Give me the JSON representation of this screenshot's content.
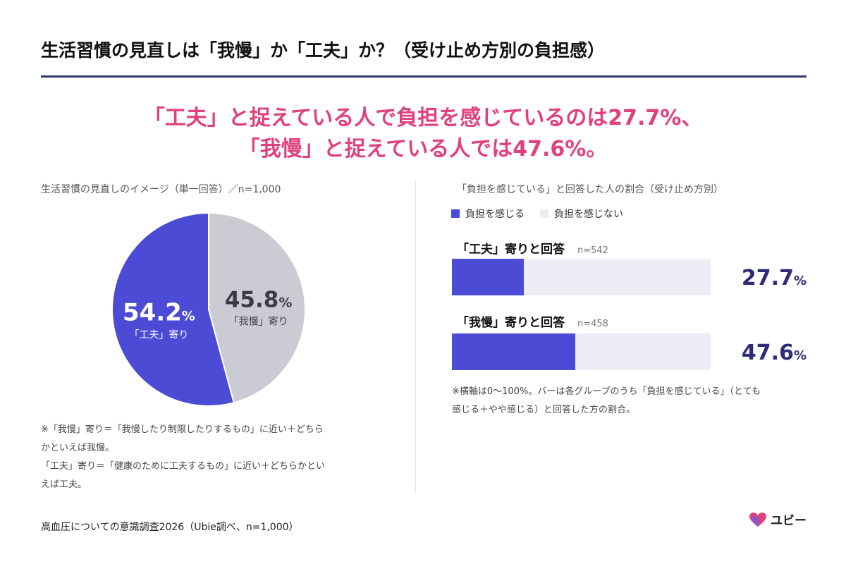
{
  "title": "生活習慣の見直しは「我慢」か「工夫」か？（受け止め方別の負担感）",
  "headline": {
    "line1": "「工夫」と捉えている人で負担を感じているのは27.7%、",
    "line2": "「我慢」と捉えている人では47.6%。"
  },
  "colors": {
    "accent": "#e0417d",
    "primary": "#4b4bd6",
    "secondary": "#cbcbd3",
    "track": "#ecedf5",
    "rule": "#2d3a6b",
    "value_text": "#2e2b7a"
  },
  "pie": {
    "subtitle": "生活習慣の見直しのイメージ（単一回答）／n=1,000",
    "notes": [
      "※「我慢」寄り＝「我慢したり制限したりするもの」に近い＋どちら",
      "かといえば我慢。",
      "「工夫」寄り＝「健康のために工夫するもの」に近い＋どちらかとい",
      "えば工夫。"
    ]
  },
  "bars": {
    "subtitle": "「負担を感じている」と回答した人の割合（受け止め方別）",
    "legend": [
      {
        "label": "負担を感じる",
        "color": "#4b4bd6"
      },
      {
        "label": "負担を感じない",
        "color": "#ecedf5"
      }
    ],
    "items": [
      {
        "label": "「工夫」寄りと回答",
        "n": "n=542",
        "value_text": "27.7",
        "unit": "%"
      },
      {
        "label": "「我慢」寄りと回答",
        "n": "n=458",
        "value_text": "47.6",
        "unit": "%"
      }
    ],
    "note_lines": [
      "※横軸は0〜100%。バーは各グループのうち「負担を感じている」（とても",
      "感じる＋やや感じる）と回答した方の割合。"
    ]
  },
  "source": "高血圧についての意識調査2026（Ubie調べ、n=1,000）",
  "logo": {
    "text": "ユビー",
    "icon": "heart-logo-icon"
  },
  "chart_data": [
    {
      "type": "pie",
      "title": "生活習慣の見直しのイメージ（単一回答）／n=1,000",
      "slices": [
        {
          "label": "「工夫」寄り",
          "value": 54.2,
          "color": "#4b4bd6"
        },
        {
          "label": "「我慢」寄り",
          "value": 45.8,
          "color": "#cbcbd3"
        }
      ]
    },
    {
      "type": "bar",
      "orientation": "horizontal",
      "title": "「負担を感じている」と回答した人の割合（受け止め方別）",
      "categories": [
        "「工夫」寄りと回答",
        "「我慢」寄りと回答"
      ],
      "series": [
        {
          "name": "負担を感じる",
          "values": [
            27.7,
            47.6
          ]
        }
      ],
      "xlim": [
        0,
        100
      ],
      "legend": "top-left"
    }
  ]
}
